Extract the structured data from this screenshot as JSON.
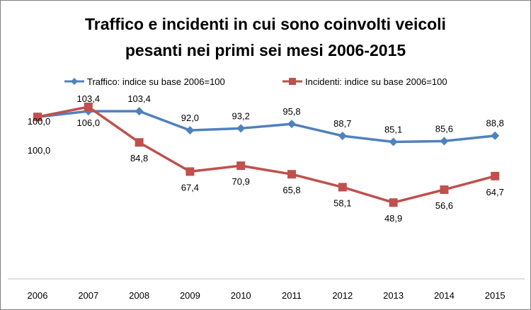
{
  "chart_data": {
    "type": "line",
    "title_lines": [
      "Traffico e incidenti in cui sono coinvolti veicoli",
      "pesanti nei primi sei mesi 2006-2015"
    ],
    "categories": [
      "2006",
      "2007",
      "2008",
      "2009",
      "2010",
      "2011",
      "2012",
      "2013",
      "2014",
      "2015"
    ],
    "series": [
      {
        "name": "Traffico: indice su base 2006=100",
        "color": "#4f81bd",
        "marker": "diamond",
        "values": [
          100.0,
          103.4,
          103.4,
          92.0,
          93.2,
          95.8,
          88.7,
          85.1,
          85.6,
          88.8
        ],
        "labels": [
          "100,0",
          "103,4",
          "103,4",
          "92,0",
          "93,2",
          "95,8",
          "88,7",
          "85,1",
          "85,6",
          "88,8"
        ],
        "label_position": "above"
      },
      {
        "name": "Incidenti: indice su base 2006=100",
        "color": "#c0504d",
        "marker": "square",
        "values": [
          100.0,
          106.0,
          84.8,
          67.4,
          70.9,
          65.8,
          58.1,
          48.9,
          56.6,
          64.7
        ],
        "labels": [
          "100,0",
          "106,0",
          "84,8",
          "67,4",
          "70,9",
          "65,8",
          "58,1",
          "48,9",
          "56,6",
          "64,7"
        ],
        "label_position": "below"
      }
    ],
    "ylim": [
      30,
      125
    ],
    "grid": false,
    "legend_position": "top"
  }
}
